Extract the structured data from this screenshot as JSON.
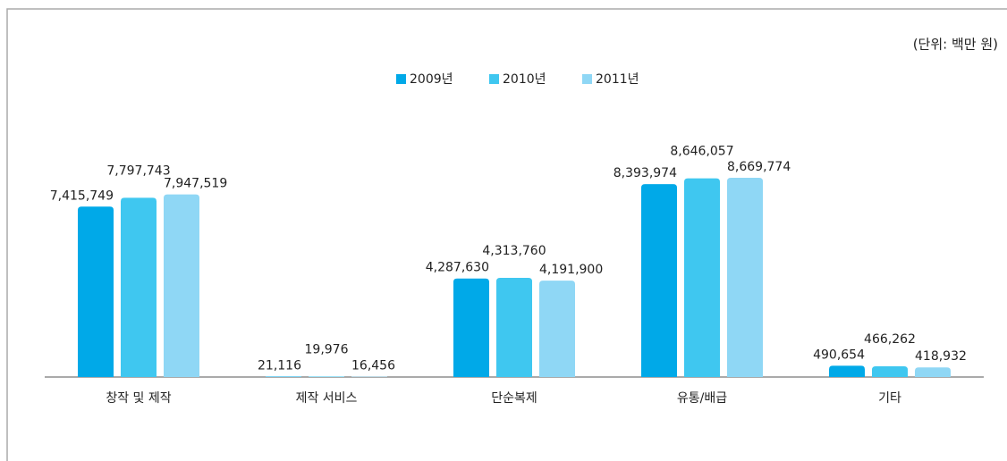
{
  "chart_data": {
    "type": "bar",
    "subtitle": "(단위: 백만 원)",
    "categories": [
      "창작 및 제작",
      "제작 서비스",
      "단순복제",
      "유통/배급",
      "기타"
    ],
    "series": [
      {
        "name": "2009년",
        "color": "#00a9e8",
        "values": [
          7415749,
          21116,
          4287630,
          8393974,
          490654
        ],
        "value_labels": [
          "7,415,749",
          "21,116",
          "4,287,630",
          "8,393,974",
          "490,654"
        ]
      },
      {
        "name": "2010년",
        "color": "#3fc7f0",
        "values": [
          7797743,
          19976,
          4313760,
          8646057,
          466262
        ],
        "value_labels": [
          "7,797,743",
          "19,976",
          "4,313,760",
          "8,646,057",
          "466,262"
        ]
      },
      {
        "name": "2011년",
        "color": "#8fd7f5",
        "values": [
          7947519,
          16456,
          4191900,
          8669774,
          418932
        ],
        "value_labels": [
          "7,947,519",
          "16,456",
          "4,191,900",
          "8,669,774",
          "418,932"
        ]
      }
    ]
  }
}
